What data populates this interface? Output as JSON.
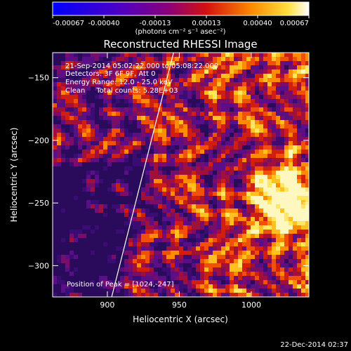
{
  "chart_data": {
    "type": "heatmap",
    "title": "Reconstructed RHESSI Image",
    "xlabel": "Heliocentric X (arcsec)",
    "ylabel": "Heliocentric Y (arcsec)",
    "xlim": [
      862,
      1040
    ],
    "ylim": [
      -325,
      -130
    ],
    "x_ticks": [
      900,
      950,
      1000
    ],
    "y_ticks": [
      -150,
      -200,
      -250,
      -300
    ],
    "colorbar": {
      "ticks": [
        "-0.00067",
        "-0.00040",
        "-0.00013",
        "0.00013",
        "0.00040",
        "0.00067"
      ],
      "min": -0.00067,
      "max": 0.00067,
      "units": "(photons cm⁻² s⁻¹ asec⁻²)"
    },
    "annotations": [
      "21-Sep-2014 05:02:22.000 to 05:08:22.000",
      "Detectors: 3F 6F 9F, Att 0",
      "Energy Range: 12.0 - 25.0 keV",
      "Clean     Total counts: 5.28E+03"
    ],
    "peak_label": "Position of Peak = [1024,-247]",
    "peak_position": [
      1024,
      -247
    ],
    "limb_line": [
      [
        903,
        -325
      ],
      [
        946,
        -130
      ]
    ],
    "grid": false
  },
  "footer": {
    "timestamp": "22-Dec-2014 02:37"
  }
}
